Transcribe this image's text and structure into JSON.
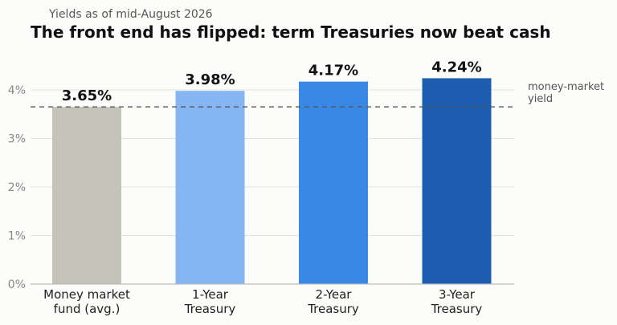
{
  "chart_data": {
    "type": "bar",
    "subtitle": "Yields as of mid-August 2026",
    "title": "The front end has flipped: term Treasuries now beat cash",
    "categories": [
      [
        "Money market",
        "fund (avg.)"
      ],
      [
        "1-Year",
        "Treasury"
      ],
      [
        "2-Year",
        "Treasury"
      ],
      [
        "3-Year",
        "Treasury"
      ]
    ],
    "values": [
      3.65,
      3.98,
      4.17,
      4.24
    ],
    "value_labels": [
      "3.65%",
      "3.98%",
      "4.17%",
      "4.24%"
    ],
    "colors": [
      "#c3c3b7",
      "#86b6f2",
      "#3a88e6",
      "#1c5db0"
    ],
    "yticks": [
      0,
      1,
      2,
      3,
      4
    ],
    "ytick_labels": [
      "0%",
      "1%",
      "2%",
      "3%",
      "4%"
    ],
    "ylim": [
      0,
      4.5
    ],
    "grid": true,
    "reference_line": {
      "value": 3.65,
      "style": "dashed",
      "label": [
        "money-market",
        "yield"
      ]
    }
  }
}
